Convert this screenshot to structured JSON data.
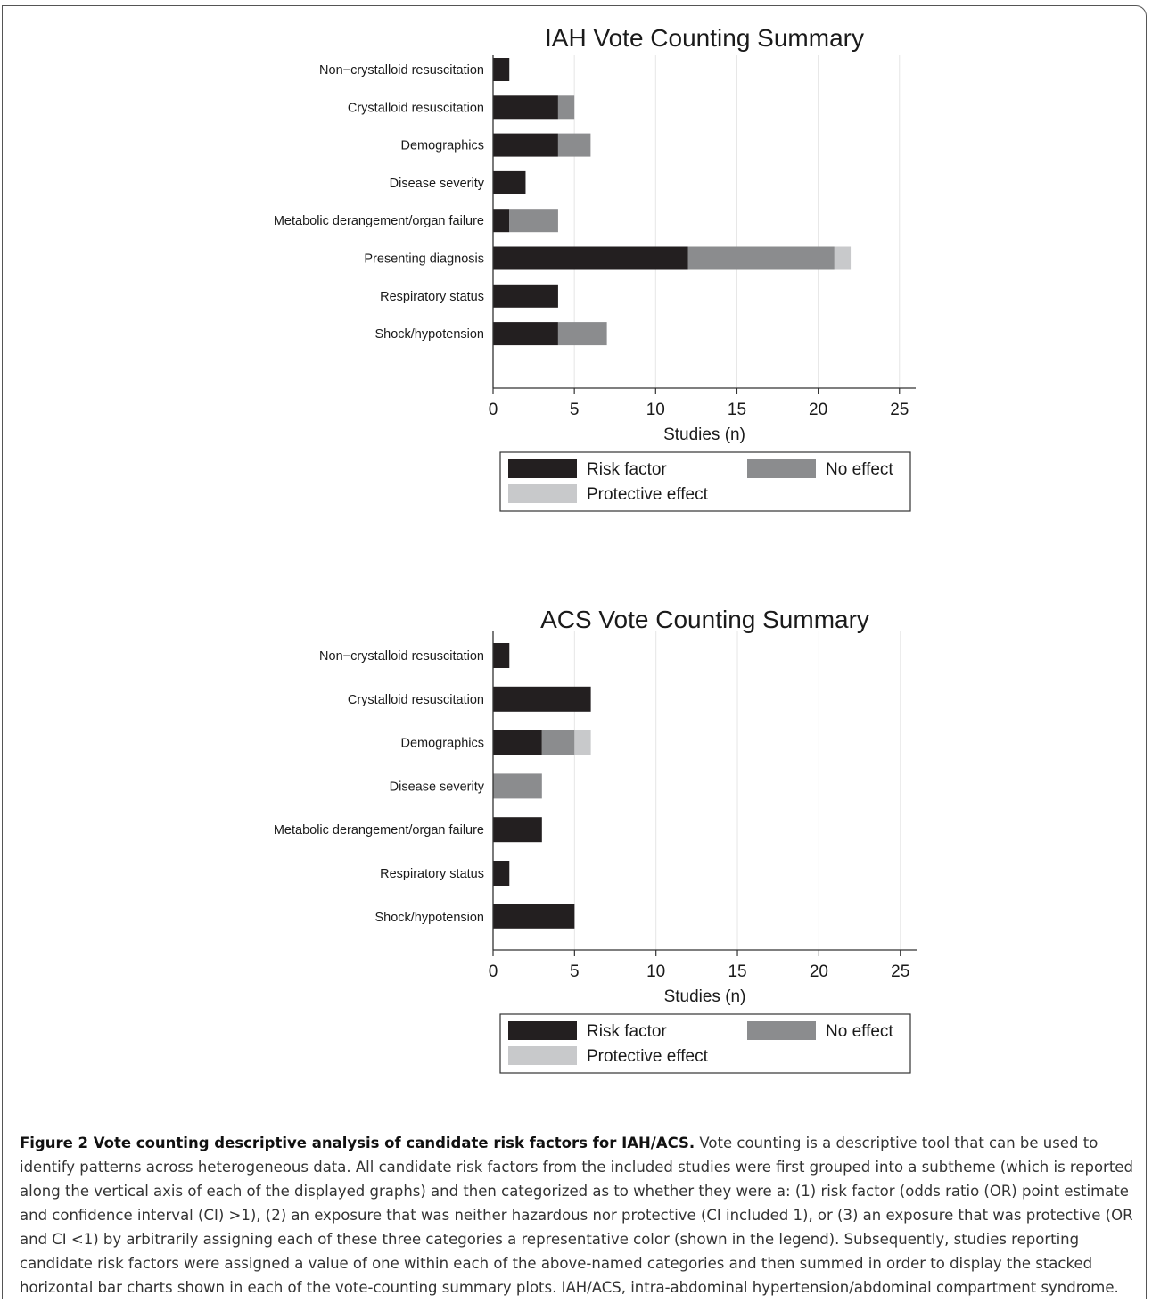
{
  "chart_data": [
    {
      "type": "bar",
      "orientation": "horizontal",
      "stacked": true,
      "title": "IAH Vote Counting Summary",
      "xlabel": "Studies (n)",
      "xlim": [
        0,
        26
      ],
      "xticks": [
        "0",
        "5",
        "10",
        "15",
        "20",
        "25"
      ],
      "grid": true,
      "legend_position": "bottom",
      "categories": [
        "Non−crystalloid resuscitation",
        "Crystalloid resuscitation",
        "Demographics",
        "Disease severity",
        "Metabolic derangement/organ failure",
        "Presenting diagnosis",
        "Respiratory status",
        "Shock/hypotension"
      ],
      "series": [
        {
          "name": "Risk factor",
          "color": "#231f20",
          "values": [
            1,
            4,
            4,
            2,
            1,
            12,
            4,
            4
          ]
        },
        {
          "name": "No effect",
          "color": "#8b8c8e",
          "values": [
            0,
            1,
            2,
            0,
            3,
            9,
            0,
            3
          ]
        },
        {
          "name": "Protective effect",
          "color": "#c8c9cb",
          "values": [
            0,
            0,
            0,
            0,
            0,
            1,
            0,
            0
          ]
        }
      ]
    },
    {
      "type": "bar",
      "orientation": "horizontal",
      "stacked": true,
      "title": "ACS Vote Counting Summary",
      "xlabel": "Studies (n)",
      "xlim": [
        0,
        26
      ],
      "xticks": [
        "0",
        "5",
        "10",
        "15",
        "20",
        "25"
      ],
      "grid": true,
      "legend_position": "bottom",
      "categories": [
        "Non−crystalloid resuscitation",
        "Crystalloid resuscitation",
        "Demographics",
        "Disease severity",
        "Metabolic derangement/organ failure",
        "Respiratory status",
        "Shock/hypotension"
      ],
      "series": [
        {
          "name": "Risk factor",
          "color": "#231f20",
          "values": [
            1,
            6,
            3,
            0,
            3,
            1,
            5
          ]
        },
        {
          "name": "No effect",
          "color": "#8b8c8e",
          "values": [
            0,
            0,
            2,
            3,
            0,
            0,
            0
          ]
        },
        {
          "name": "Protective effect",
          "color": "#c8c9cb",
          "values": [
            0,
            0,
            1,
            0,
            0,
            0,
            0
          ]
        }
      ]
    }
  ],
  "caption": {
    "bold": "Figure 2 Vote counting descriptive analysis of candidate risk factors for IAH/ACS.",
    "text": " Vote counting is a descriptive tool that can be used to identify patterns across heterogeneous data. All candidate risk factors from the included studies were first grouped into a subtheme (which is reported along the vertical axis of each of the displayed graphs) and then categorized as to whether they were a: (1) risk factor (odds ratio (OR) point estimate and confidence interval (CI) >1), (2) an exposure that was neither hazardous nor protective (CI included 1), or (3) an exposure that was protective (OR and CI <1) by arbitrarily assigning each of these three categories a representative color (shown in the legend). Subsequently, studies reporting candidate risk factors were assigned a value of one within each of the above-named categories and then summed in order to display the stacked horizontal bar charts shown in each of the vote-counting summary plots. IAH/ACS, intra-abdominal hypertension/abdominal compartment syndrome."
  }
}
